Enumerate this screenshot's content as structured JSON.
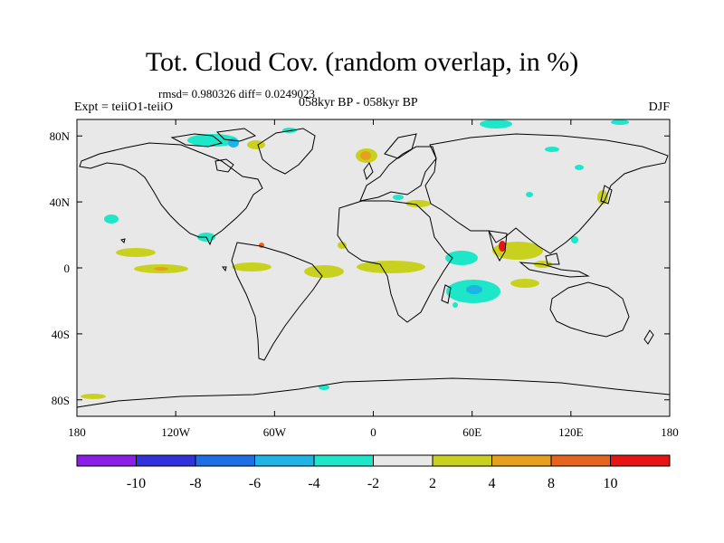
{
  "title": "Tot. Cloud Cov. (random overlap, in %)",
  "stats": "rmsd= 0.980326 diff= 0.0249023",
  "expt": "Expt = teiiO1-teiiO",
  "period": "058kyr BP - 058kyr BP",
  "season": "DJF",
  "map": {
    "lat_ticks": [
      {
        "lat": 80,
        "label": "80N"
      },
      {
        "lat": 40,
        "label": "40N"
      },
      {
        "lat": 0,
        "label": "0"
      },
      {
        "lat": -40,
        "label": "40S"
      },
      {
        "lat": -80,
        "label": "80S"
      }
    ],
    "lon_ticks": [
      {
        "lon": -180,
        "label": "180"
      },
      {
        "lon": -120,
        "label": "120W"
      },
      {
        "lon": -60,
        "label": "60W"
      },
      {
        "lon": 0,
        "label": "0"
      },
      {
        "lon": 60,
        "label": "60E"
      },
      {
        "lon": 120,
        "label": "120E"
      },
      {
        "lon": 180,
        "label": "180"
      }
    ],
    "background_color": "#e8e8e8",
    "coast_color": "#000000"
  },
  "colorbar": {
    "colors": [
      "#8a1ee6",
      "#3232dc",
      "#1e6ee6",
      "#1eb4e6",
      "#1ee6c8",
      "#e8e8e8",
      "#c8d21e",
      "#e6a01e",
      "#e6641e",
      "#e61414"
    ],
    "labels": [
      "-10",
      "-8",
      "-6",
      "-4",
      "-2",
      "2",
      "4",
      "8",
      "10"
    ]
  }
}
